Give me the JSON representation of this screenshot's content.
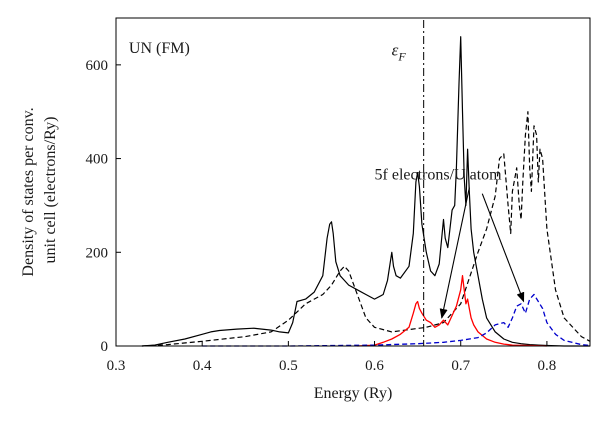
{
  "chart_data": {
    "type": "line",
    "title": "",
    "xlabel": "Energy (Ry)",
    "ylabel_lines": [
      "Density of states per conv.",
      "unit cell (electrons/Ry)"
    ],
    "xlim": [
      0.3,
      0.85
    ],
    "ylim": [
      0,
      700
    ],
    "xticks": [
      0.3,
      0.4,
      0.5,
      0.6,
      0.7,
      0.8
    ],
    "xtick_labels": [
      "0.3",
      "0.4",
      "0.5",
      "0.6",
      "0.7",
      "0.8"
    ],
    "yticks": [
      0,
      200,
      400,
      600
    ],
    "ytick_labels": [
      "0",
      "200",
      "400",
      "600"
    ],
    "grid": false,
    "annotations": {
      "system": "UN (FM)",
      "fermi_symbol": "ε",
      "fermi_subscript": "F",
      "fermi_energy": 0.657,
      "arrow_label": "5f electrons/U atom"
    },
    "arrows": [
      {
        "from": [
          0.71,
          338
        ],
        "to": [
          0.678,
          60
        ]
      },
      {
        "from": [
          0.725,
          325
        ],
        "to": [
          0.773,
          95
        ]
      }
    ],
    "series": [
      {
        "color": "#000000",
        "style": "solid",
        "x": [
          0.33,
          0.345,
          0.36,
          0.38,
          0.4,
          0.41,
          0.42,
          0.44,
          0.46,
          0.48,
          0.49,
          0.5,
          0.505,
          0.51,
          0.52,
          0.53,
          0.54,
          0.545,
          0.548,
          0.55,
          0.552,
          0.555,
          0.56,
          0.565,
          0.57,
          0.58,
          0.59,
          0.6,
          0.61,
          0.615,
          0.62,
          0.622,
          0.625,
          0.63,
          0.64,
          0.645,
          0.648,
          0.65,
          0.652,
          0.655,
          0.66,
          0.665,
          0.67,
          0.675,
          0.68,
          0.682,
          0.685,
          0.69,
          0.693,
          0.695,
          0.698,
          0.7,
          0.702,
          0.704,
          0.706,
          0.708,
          0.71,
          0.712,
          0.715,
          0.72,
          0.725,
          0.73,
          0.74,
          0.75,
          0.76,
          0.77,
          0.78,
          0.79,
          0.8,
          0.82,
          0.85
        ],
        "y": [
          0,
          2,
          8,
          15,
          25,
          30,
          33,
          36,
          38,
          34,
          30,
          28,
          50,
          95,
          100,
          115,
          150,
          230,
          260,
          265,
          240,
          180,
          150,
          140,
          130,
          120,
          110,
          100,
          110,
          140,
          200,
          170,
          150,
          145,
          170,
          240,
          350,
          370,
          340,
          260,
          200,
          160,
          150,
          175,
          270,
          230,
          210,
          290,
          300,
          380,
          560,
          660,
          500,
          360,
          300,
          420,
          330,
          250,
          200,
          150,
          100,
          60,
          30,
          15,
          8,
          5,
          3,
          2,
          1,
          0,
          0
        ]
      },
      {
        "color": "#000000",
        "style": "dashed",
        "x": [
          0.33,
          0.36,
          0.4,
          0.45,
          0.48,
          0.5,
          0.52,
          0.54,
          0.55,
          0.56,
          0.565,
          0.57,
          0.58,
          0.59,
          0.6,
          0.62,
          0.64,
          0.66,
          0.68,
          0.7,
          0.72,
          0.73,
          0.74,
          0.745,
          0.75,
          0.755,
          0.758,
          0.76,
          0.765,
          0.768,
          0.77,
          0.772,
          0.775,
          0.778,
          0.78,
          0.782,
          0.785,
          0.788,
          0.79,
          0.792,
          0.795,
          0.8,
          0.81,
          0.82,
          0.84,
          0.85
        ],
        "y": [
          0,
          3,
          10,
          20,
          30,
          55,
          90,
          110,
          130,
          160,
          170,
          160,
          110,
          60,
          40,
          30,
          35,
          40,
          50,
          90,
          200,
          250,
          320,
          400,
          410,
          300,
          240,
          330,
          380,
          300,
          270,
          350,
          450,
          500,
          380,
          330,
          470,
          450,
          350,
          420,
          400,
          250,
          120,
          60,
          20,
          10
        ]
      },
      {
        "color": "#ff0000",
        "style": "solid",
        "x": [
          0.58,
          0.6,
          0.61,
          0.62,
          0.63,
          0.64,
          0.645,
          0.648,
          0.65,
          0.652,
          0.655,
          0.66,
          0.665,
          0.67,
          0.675,
          0.68,
          0.685,
          0.69,
          0.695,
          0.7,
          0.702,
          0.704,
          0.706,
          0.708,
          0.71,
          0.712,
          0.715,
          0.72,
          0.73,
          0.74,
          0.75,
          0.76,
          0.78,
          0.8
        ],
        "y": [
          0,
          2,
          8,
          15,
          25,
          40,
          70,
          90,
          95,
          80,
          70,
          55,
          50,
          40,
          45,
          55,
          45,
          65,
          85,
          120,
          150,
          120,
          90,
          100,
          80,
          60,
          45,
          30,
          15,
          8,
          4,
          2,
          1,
          0
        ]
      },
      {
        "color": "#0000cc",
        "style": "dashed",
        "x": [
          0.4,
          0.5,
          0.6,
          0.65,
          0.68,
          0.7,
          0.72,
          0.73,
          0.74,
          0.75,
          0.755,
          0.76,
          0.765,
          0.77,
          0.775,
          0.78,
          0.785,
          0.79,
          0.795,
          0.8,
          0.81,
          0.82,
          0.84,
          0.85
        ],
        "y": [
          0,
          0,
          2,
          5,
          8,
          12,
          18,
          28,
          45,
          50,
          40,
          60,
          85,
          90,
          70,
          100,
          110,
          95,
          80,
          50,
          25,
          12,
          3,
          1
        ]
      }
    ]
  }
}
